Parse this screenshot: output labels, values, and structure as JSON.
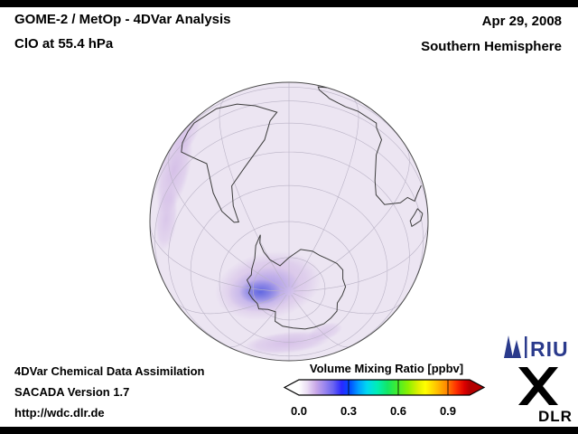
{
  "header": {
    "title_line1": "GOME-2 / MetOp - 4DVar Analysis",
    "title_line2": "ClO at 55.4 hPa",
    "date": "Apr 29, 2008",
    "region": "Southern Hemisphere"
  },
  "footer": {
    "line1": "4DVar Chemical Data Assimilation",
    "line2": "SACADA Version 1.7",
    "line3": "http://wdc.dlr.de"
  },
  "colorbar": {
    "title": "Volume Mixing Ratio [ppbv]",
    "ticks": [
      "0.0",
      "0.3",
      "0.6",
      "0.9"
    ],
    "min": 0.0,
    "max": 1.0,
    "scale_colors": [
      "#ffffff",
      "#c9a8e8",
      "#6a64f0",
      "#0050ff",
      "#00d8f0",
      "#14e664",
      "#8cf000",
      "#ffff00",
      "#ffa000",
      "#ff3200",
      "#b40000"
    ]
  },
  "logos": {
    "riu_text": "RIU",
    "dlr_text": "DLR"
  },
  "chart_data": {
    "type": "heatmap",
    "title": "GOME-2 / MetOp - 4DVar Analysis, ClO at 55.4 hPa",
    "date": "Apr 29, 2008",
    "projection": "orthographic globe, Southern Hemisphere view (South America top center, southern Africa upper right, Antarctica bottom center)",
    "variable": "ClO volume mixing ratio",
    "units": "ppbv",
    "colorbar_ticks": [
      0.0,
      0.3,
      0.6,
      0.9
    ],
    "colorbar_range": [
      0.0,
      1.0
    ],
    "field_summary": [
      {
        "region": "most of hemisphere",
        "value_ppbv": "~0.0-0.05 (pale lavender background)"
      },
      {
        "region": "southwest of Antarctica, near 60-70S west of the Antarctic Peninsula",
        "value_ppbv": "~0.15-0.3 enhanced blue-purple patch"
      },
      {
        "region": "western limb of globe (mid-latitudes)",
        "value_ppbv": "~0.05-0.15 faint purple streaks"
      },
      {
        "region": "near bottom limb south of Antarctica view edge",
        "value_ppbv": "~0.05-0.1 faint purple streak"
      }
    ],
    "grid": "graticule 30 deg meridians / 15 deg parallels"
  }
}
